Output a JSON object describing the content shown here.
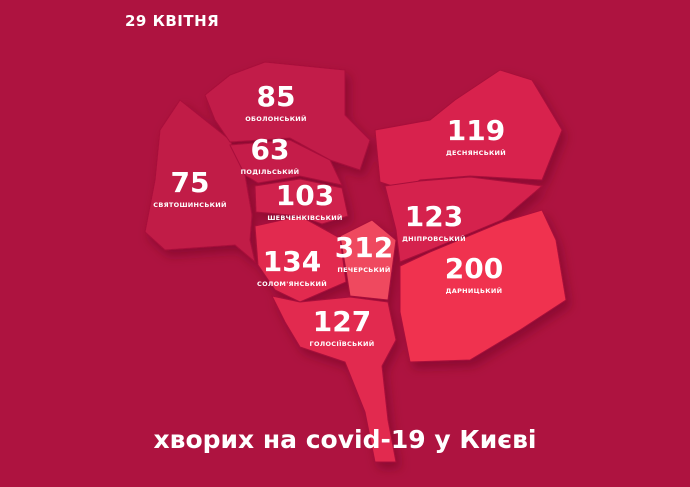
{
  "date": "29 КВІТНЯ",
  "caption": "хворих на covid-19 у Києві",
  "colors": {
    "background": "#ae1340",
    "low": "#c11a47",
    "mid": "#d0244e",
    "high": "#e2294f",
    "highest": "#ef4a5e"
  },
  "districts": [
    {
      "id": "obolon",
      "name": "ОБОЛОНСЬКИЙ",
      "cases": "85"
    },
    {
      "id": "podil",
      "name": "ПОДІЛЬСЬКИЙ",
      "cases": "63"
    },
    {
      "id": "sviatoshyn",
      "name": "СВЯТОШИНСЬКИЙ",
      "cases": "75"
    },
    {
      "id": "shevchenko",
      "name": "ШЕВЧЕНКІВСЬКИЙ",
      "cases": "103"
    },
    {
      "id": "solomianskyi",
      "name": "СОЛОМ'ЯНСЬКИЙ",
      "cases": "134"
    },
    {
      "id": "pechersk",
      "name": "ПЕЧЕРСЬКИЙ",
      "cases": "312"
    },
    {
      "id": "holosiiv",
      "name": "ГОЛОСІЇВСЬКИЙ",
      "cases": "127"
    },
    {
      "id": "desna",
      "name": "ДЕСНЯНСЬКИЙ",
      "cases": "119"
    },
    {
      "id": "dnipro",
      "name": "ДНІПРОВСЬКИЙ",
      "cases": "123"
    },
    {
      "id": "darnytsia",
      "name": "ДАРНИЦЬКИЙ",
      "cases": "200"
    }
  ]
}
